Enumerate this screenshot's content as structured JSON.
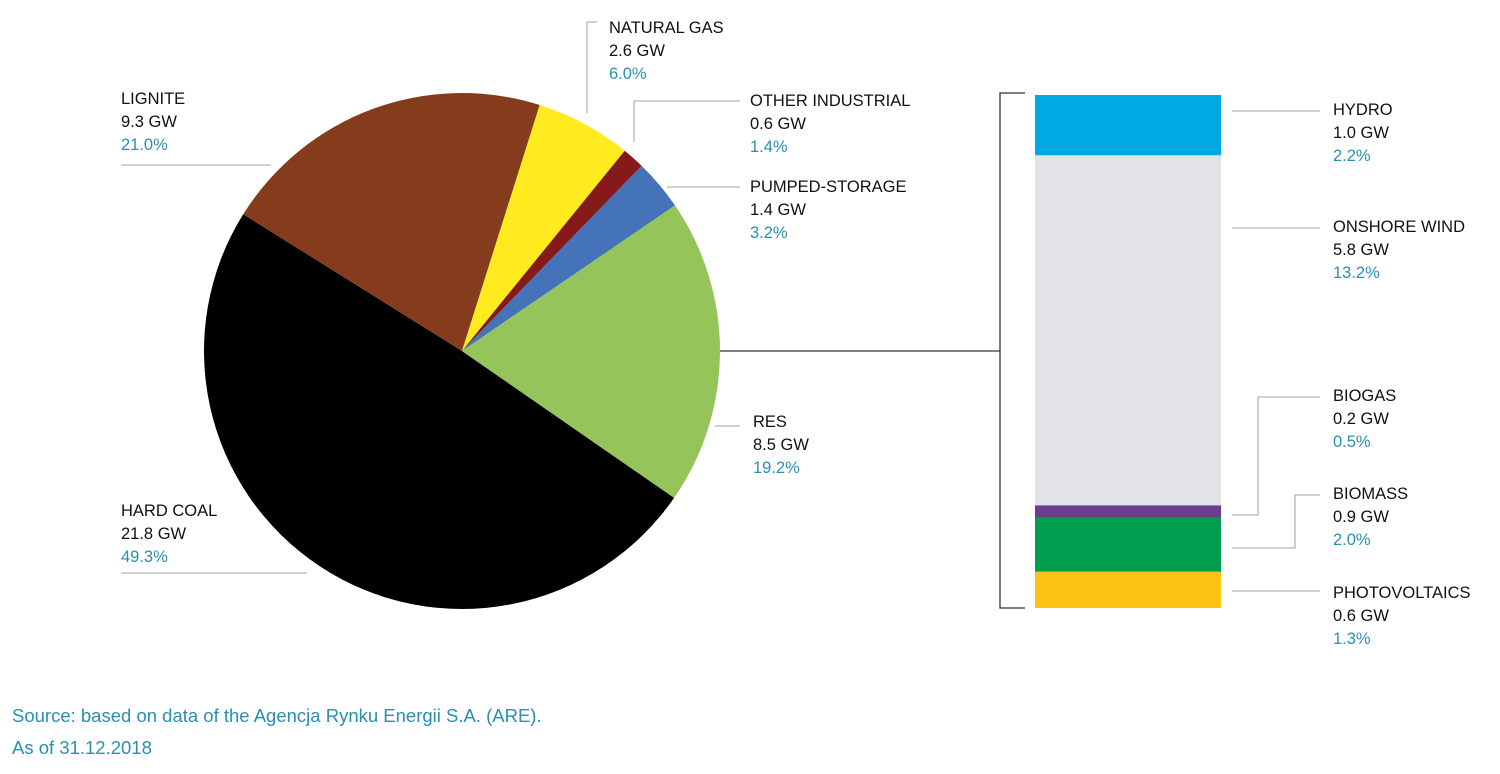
{
  "chart_data": [
    {
      "type": "pie",
      "slices": [
        {
          "name": "HARD COAL",
          "value_gw": 21.8,
          "value_label": "21.8 GW",
          "percent": 49.3,
          "percent_label": "49.3%",
          "color": "#000000"
        },
        {
          "name": "LIGNITE",
          "value_gw": 9.3,
          "value_label": "9.3 GW",
          "percent": 21.0,
          "percent_label": "21.0%",
          "color": "#843c1c"
        },
        {
          "name": "NATURAL GAS",
          "value_gw": 2.6,
          "value_label": "2.6 GW",
          "percent": 6.0,
          "percent_label": "6.0%",
          "color": "#ffeb1f"
        },
        {
          "name": "OTHER INDUSTRIAL",
          "value_gw": 0.6,
          "value_label": "0.6 GW",
          "percent": 1.4,
          "percent_label": "1.4%",
          "color": "#861a1b"
        },
        {
          "name": "PUMPED-STORAGE",
          "value_gw": 1.4,
          "value_label": "1.4 GW",
          "percent": 3.2,
          "percent_label": "3.2%",
          "color": "#4573b9"
        },
        {
          "name": "RES",
          "value_gw": 8.5,
          "value_label": "8.5 GW",
          "percent": 19.2,
          "percent_label": "19.2%",
          "color": "#95c45a"
        }
      ]
    },
    {
      "type": "stacked-bar",
      "parent": "RES",
      "segments": [
        {
          "name": "HYDRO",
          "value_gw": 1.0,
          "value_label": "1.0 GW",
          "percent": 2.2,
          "percent_label": "2.2%",
          "color": "#00a8e4"
        },
        {
          "name": "ONSHORE WIND",
          "value_gw": 5.8,
          "value_label": "5.8 GW",
          "percent": 13.2,
          "percent_label": "13.2%",
          "color": "#e2e3e8"
        },
        {
          "name": "BIOGAS",
          "value_gw": 0.2,
          "value_label": "0.2 GW",
          "percent": 0.5,
          "percent_label": "0.5%",
          "color": "#6b3c8f"
        },
        {
          "name": "BIOMASS",
          "value_gw": 0.9,
          "value_label": "0.9 GW",
          "percent": 2.0,
          "percent_label": "2.0%",
          "color": "#009d4f"
        },
        {
          "name": "PHOTOVOLTAICS",
          "value_gw": 0.6,
          "value_label": "0.6 GW",
          "percent": 1.3,
          "percent_label": "1.3%",
          "color": "#fcc313"
        }
      ]
    }
  ],
  "footer": {
    "source": "Source: based on data of the Agencja Rynku Energii S.A. (ARE).",
    "date": "As of 31.12.2018"
  }
}
